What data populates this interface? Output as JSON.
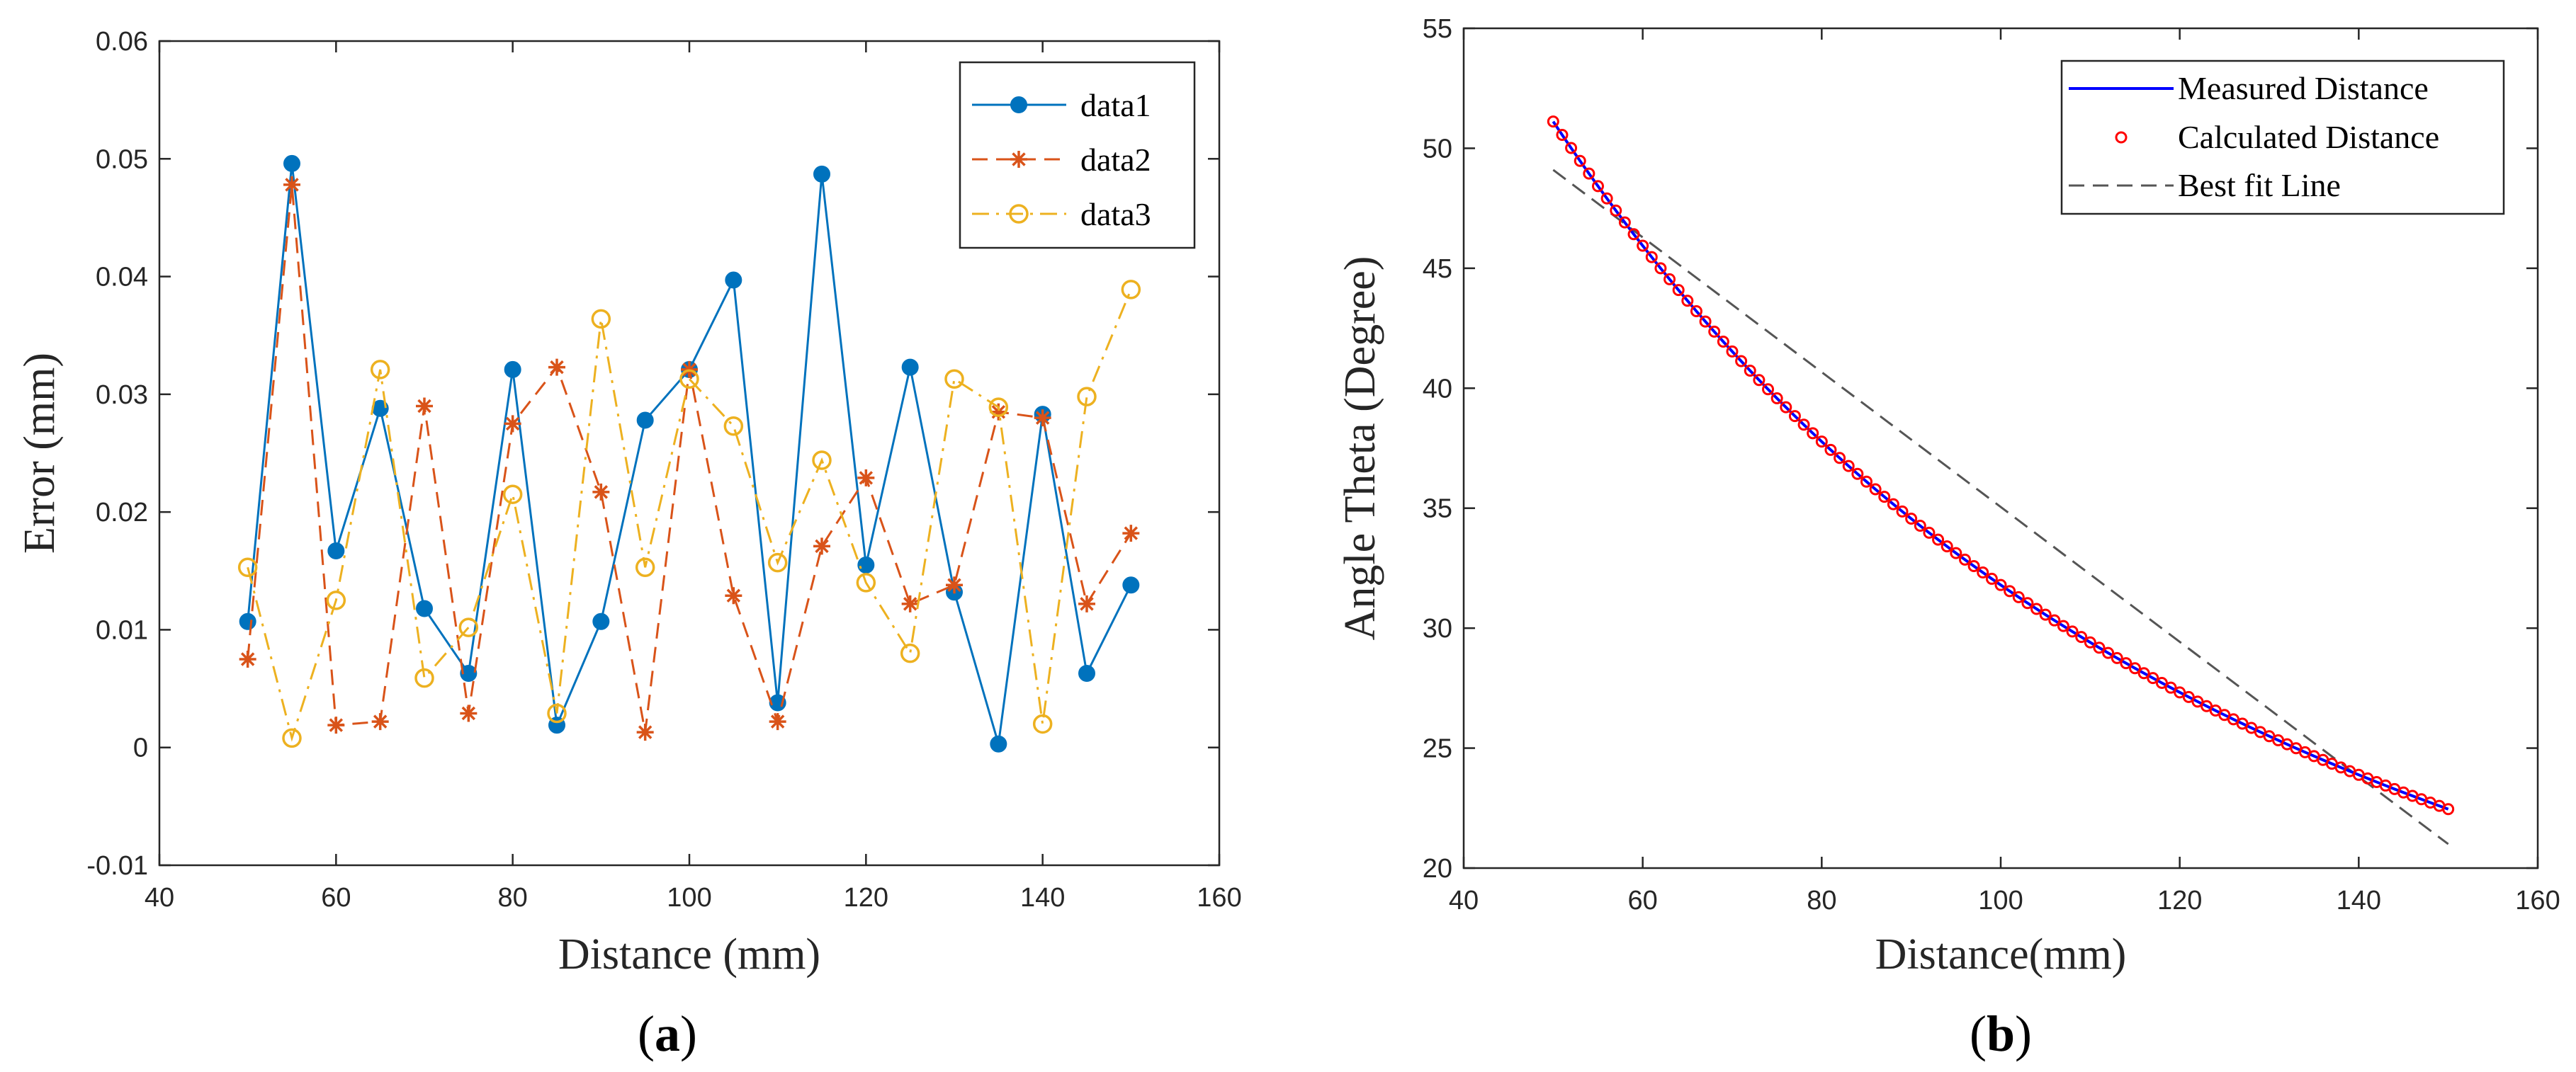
{
  "chart_data": [
    {
      "type": "line",
      "panel_label": "a",
      "xlabel": "Distance (mm)",
      "ylabel": "Error (mm)",
      "xlim": [
        40,
        160
      ],
      "ylim": [
        -0.01,
        0.06
      ],
      "xticks": [
        40,
        60,
        80,
        100,
        120,
        140,
        160
      ],
      "yticks": [
        -0.01,
        0,
        0.01,
        0.02,
        0.03,
        0.04,
        0.05,
        0.06
      ],
      "ytick_labels": [
        "-0.01",
        "0",
        "0.01",
        "0.02",
        "0.03",
        "0.04",
        "0.05",
        "0.06"
      ],
      "legend_position": "top-right",
      "x": [
        50,
        55,
        60,
        65,
        70,
        75,
        80,
        85,
        90,
        95,
        100,
        105,
        110,
        115,
        120,
        125,
        130,
        135,
        140,
        145,
        150
      ],
      "series": [
        {
          "name": "data1",
          "color": "#0072BD",
          "line_style": "solid",
          "marker": "filled-circle",
          "values": [
            0.0107,
            0.0496,
            0.0167,
            0.0288,
            0.0118,
            0.0063,
            0.0321,
            0.0019,
            0.0107,
            0.0278,
            0.0321,
            0.0397,
            0.0038,
            0.0487,
            0.0155,
            0.0323,
            0.0132,
            0.0003,
            0.0283,
            0.0063,
            0.0138
          ]
        },
        {
          "name": "data2",
          "color": "#D95319",
          "line_style": "dashed",
          "marker": "asterisk",
          "values": [
            0.0075,
            0.0478,
            0.0019,
            0.0022,
            0.029,
            0.0029,
            0.0275,
            0.0323,
            0.0217,
            0.0013,
            0.0321,
            0.0129,
            0.0022,
            0.0171,
            0.0229,
            0.0122,
            0.0138,
            0.0285,
            0.028,
            0.0122,
            0.0182
          ]
        },
        {
          "name": "data3",
          "color": "#EDB120",
          "line_style": "dashdot",
          "marker": "open-circle",
          "values": [
            0.0153,
            0.0008,
            0.0125,
            0.0321,
            0.0059,
            0.0102,
            0.0215,
            0.0029,
            0.0364,
            0.0153,
            0.0313,
            0.0273,
            0.0157,
            0.0244,
            0.014,
            0.008,
            0.0313,
            0.0289,
            0.002,
            0.0298,
            0.0389
          ]
        }
      ]
    },
    {
      "type": "line",
      "panel_label": "b",
      "xlabel": "Distance(mm)",
      "ylabel": "Angle Theta (Degree)",
      "xlim": [
        40,
        160
      ],
      "ylim": [
        20,
        55
      ],
      "xticks": [
        40,
        60,
        80,
        100,
        120,
        140,
        160
      ],
      "yticks": [
        20,
        25,
        30,
        35,
        40,
        45,
        50,
        55
      ],
      "legend_position": "top-right",
      "curve_model": {
        "description": "theta = atan(62 / distance) in degrees, sampled at integer distances 50..150",
        "x_start": 50,
        "x_end": 150,
        "x_step": 1,
        "param": 62
      },
      "series": [
        {
          "name": "Measured Distance",
          "color": "#0000FF",
          "line_style": "solid",
          "marker": "none"
        },
        {
          "name": "Calculated Distance",
          "color": "#FF0000",
          "line_style": "none",
          "marker": "open-circle"
        },
        {
          "name": "Best fit Line",
          "color": "#555555",
          "line_style": "dashed",
          "marker": "none",
          "x": [
            50,
            150
          ],
          "values": [
            49.1,
            21.0
          ]
        }
      ]
    }
  ]
}
